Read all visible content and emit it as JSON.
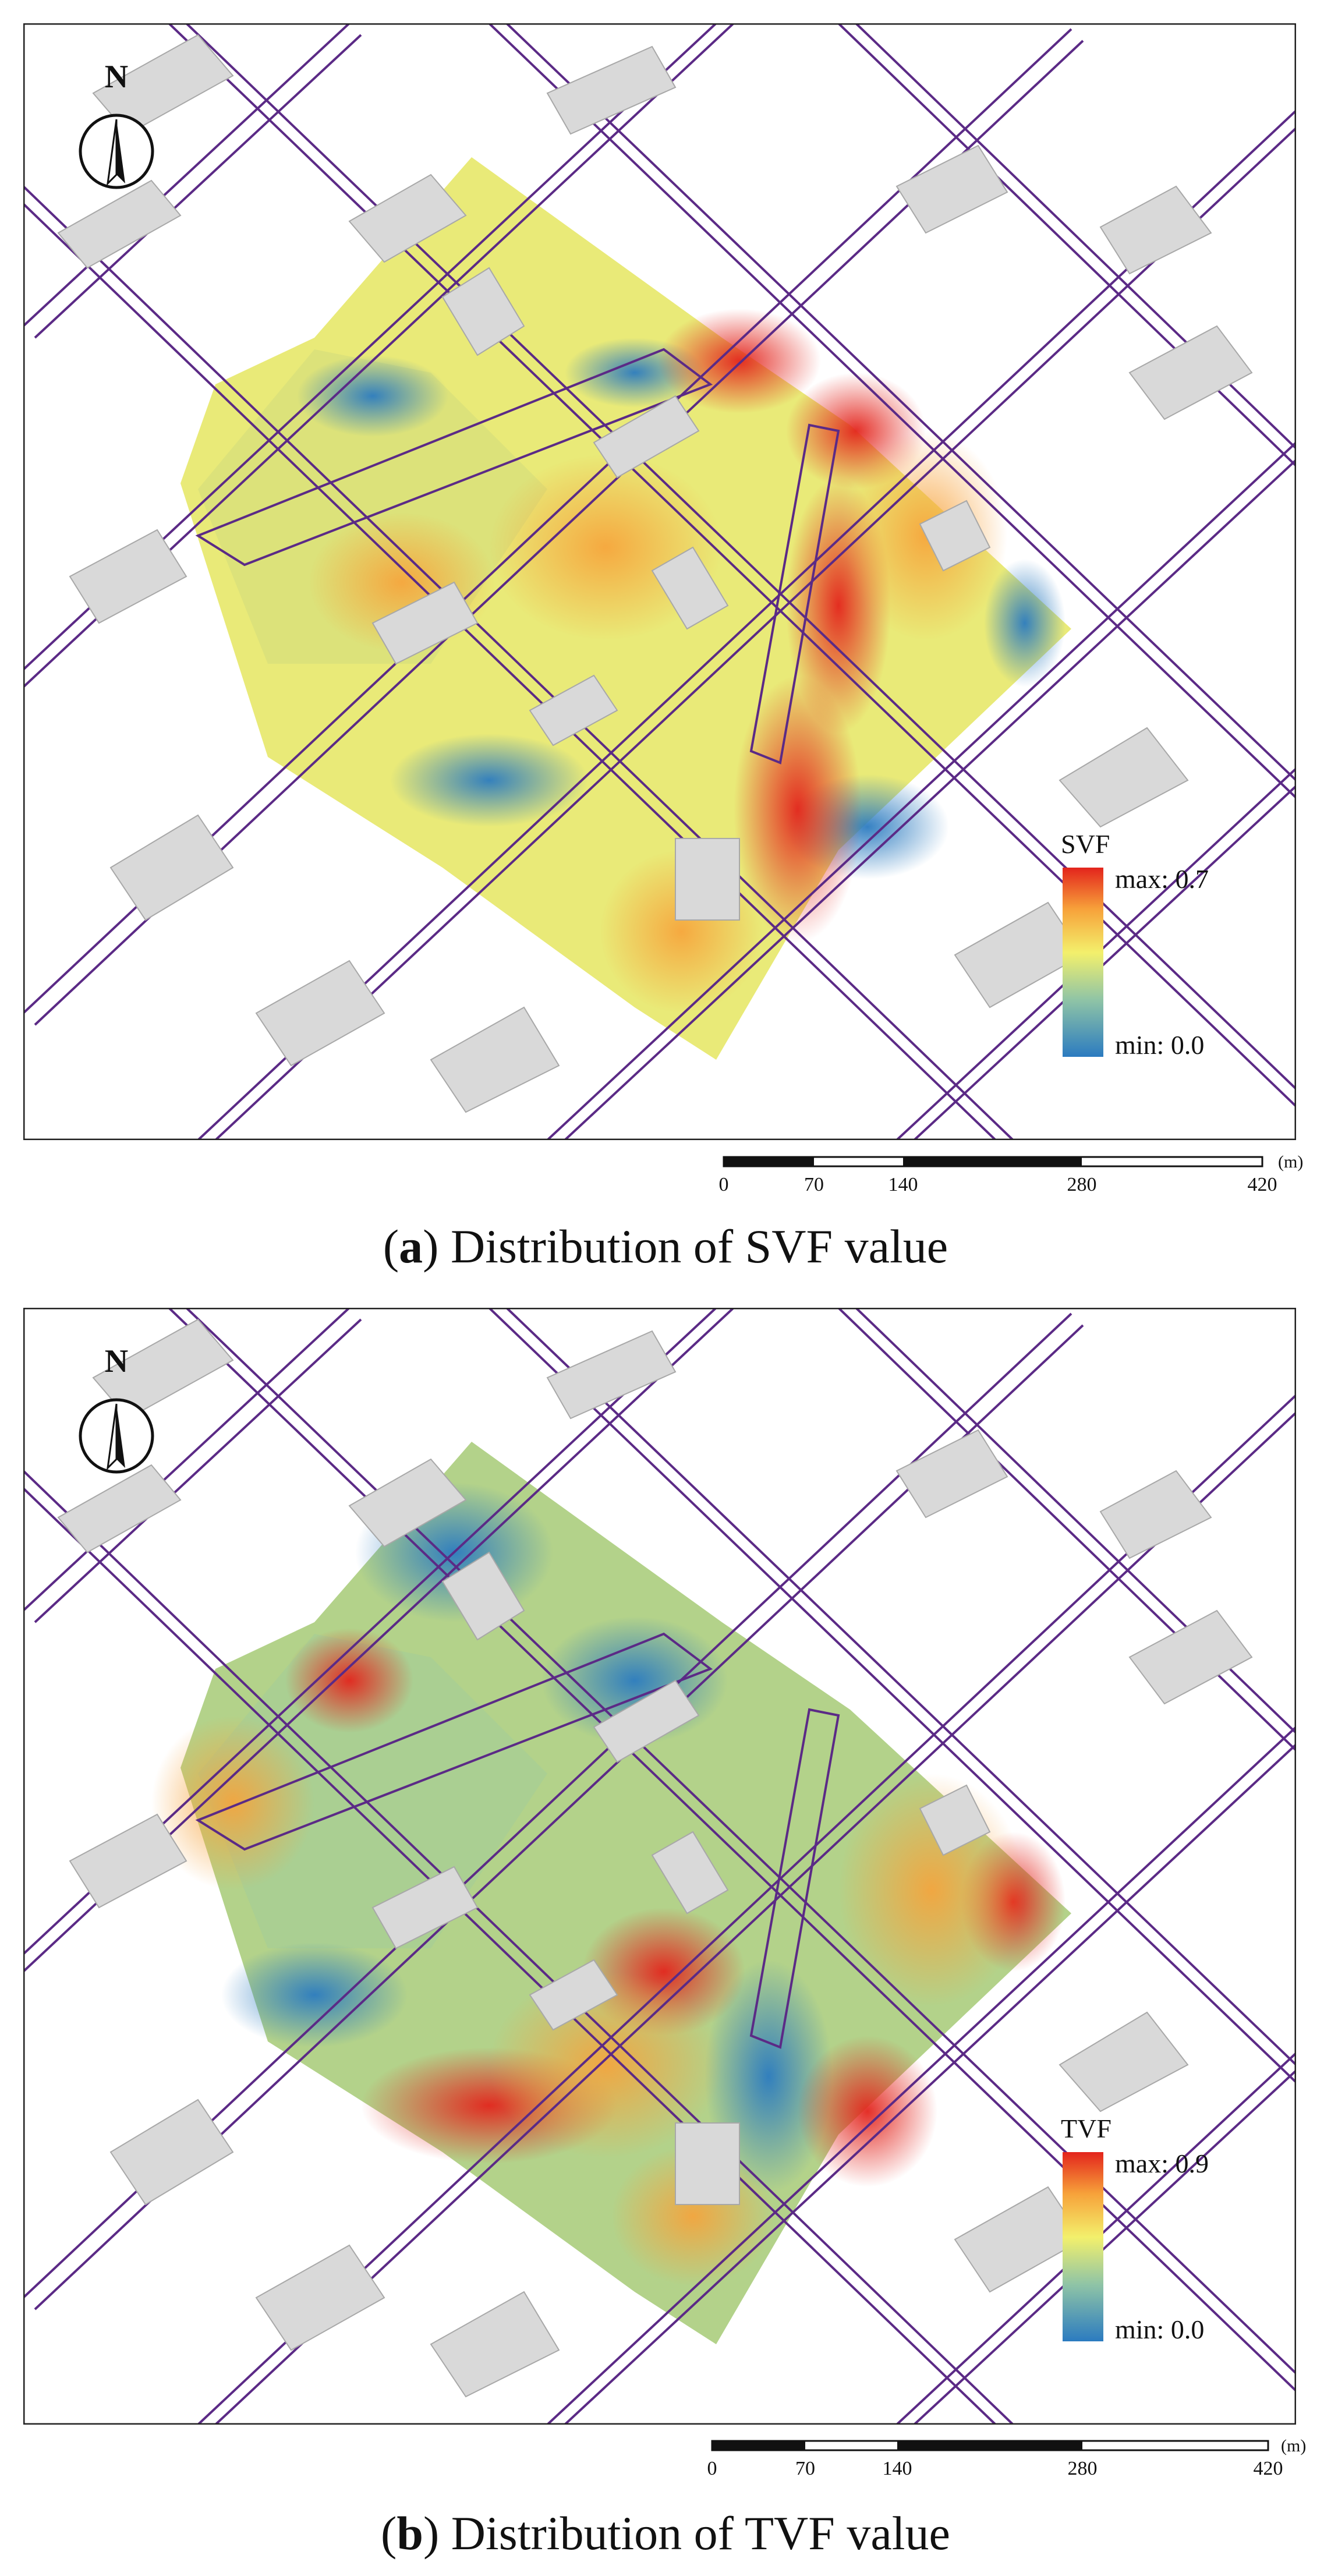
{
  "panels": [
    {
      "id": "a",
      "north_label": "N",
      "legend": {
        "title": "SVF",
        "max_label": "max: 0.7",
        "min_label": "min: 0.0"
      },
      "scale": {
        "ticks": [
          "0",
          "70",
          "140",
          "280",
          "420"
        ],
        "unit": "(m)"
      },
      "caption": {
        "letter": "a",
        "text": "Distribution of SVF value"
      }
    },
    {
      "id": "b",
      "north_label": "N",
      "legend": {
        "title": "TVF",
        "max_label": "max: 0.9",
        "min_label": "min: 0.0"
      },
      "scale": {
        "ticks": [
          "0",
          "70",
          "140",
          "280",
          "420"
        ],
        "unit": "(m)"
      },
      "caption": {
        "letter": "b",
        "text": "Distribution of TVF value"
      }
    }
  ],
  "colors": {
    "road": "#5b2a86",
    "building_fill": "#d9d9d9",
    "building_edge": "#a8a8a8",
    "ramp": [
      "#2b7bc0",
      "#8fc4a6",
      "#f3f06c",
      "#f7a23a",
      "#e3241c"
    ]
  }
}
